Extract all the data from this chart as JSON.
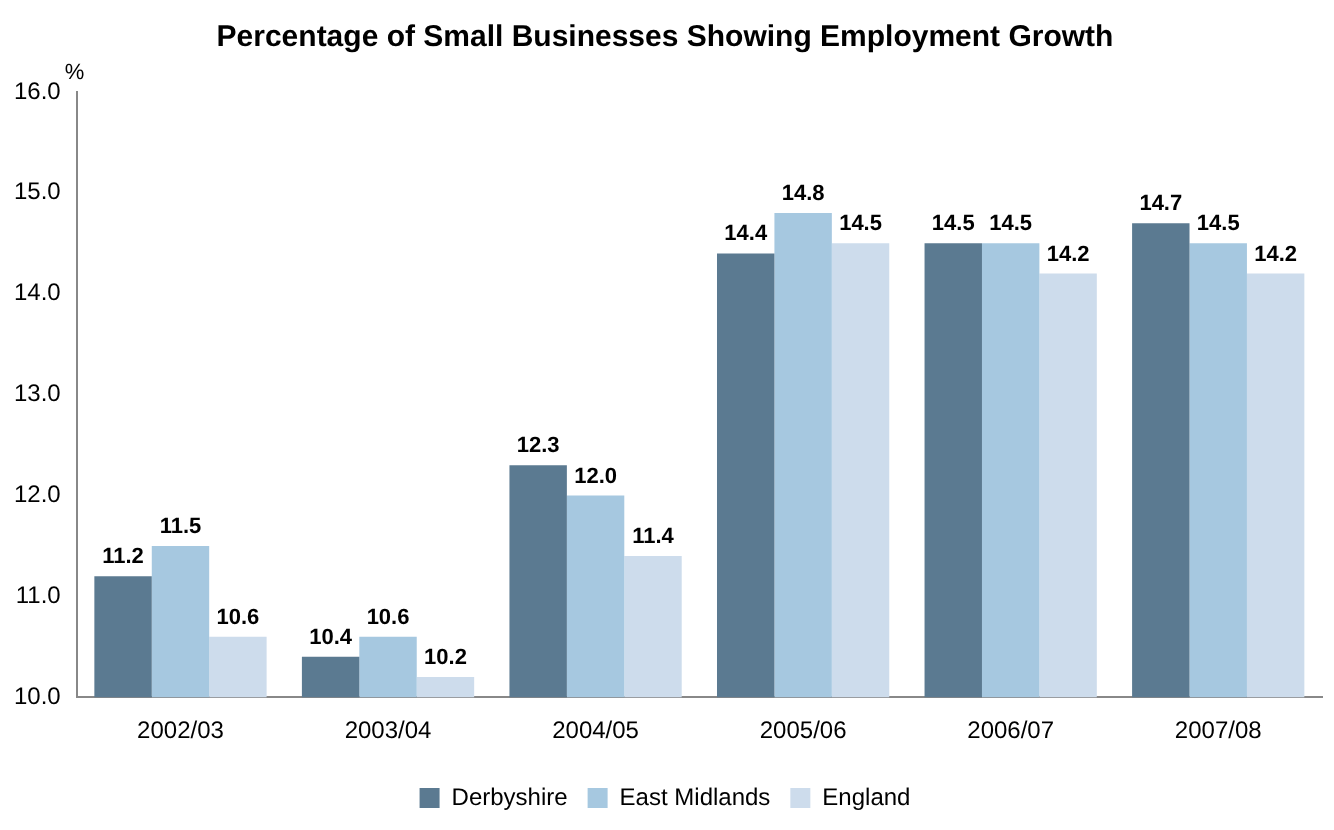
{
  "chart_data": {
    "type": "bar",
    "title": "Percentage of Small Businesses Showing Employment Growth",
    "ylabel": "%",
    "categories": [
      "2002/03",
      "2003/04",
      "2004/05",
      "2005/06",
      "2006/07",
      "2007/08"
    ],
    "series": [
      {
        "name": "Derbyshire",
        "color": "#5b7a91",
        "values": [
          11.2,
          10.4,
          12.3,
          14.4,
          14.5,
          14.7
        ],
        "value_labels": [
          "11.2",
          "10.4",
          "12.3",
          "14.4",
          "14.5",
          "14.7"
        ]
      },
      {
        "name": "East Midlands",
        "color": "#a6c8e0",
        "values": [
          11.5,
          10.6,
          12.0,
          14.8,
          14.5,
          14.5
        ],
        "value_labels": [
          "11.5",
          "10.6",
          "12.0",
          "14.8",
          "14.5",
          "14.5"
        ]
      },
      {
        "name": "England",
        "color": "#cddcec",
        "values": [
          10.6,
          10.2,
          11.4,
          14.5,
          14.2,
          14.2
        ],
        "value_labels": [
          "10.6",
          "10.2",
          "11.4",
          "14.5",
          "14.2",
          "14.2"
        ]
      }
    ],
    "ylim": [
      10,
      16
    ],
    "yticks": [
      {
        "value": 10,
        "label": "10.0"
      },
      {
        "value": 11,
        "label": "11.0"
      },
      {
        "value": 12,
        "label": "12.0"
      },
      {
        "value": 13,
        "label": "13.0"
      },
      {
        "value": 14,
        "label": "14.0"
      },
      {
        "value": 15,
        "label": "15.0"
      },
      {
        "value": 16,
        "label": "16.0"
      }
    ],
    "grid": false,
    "legend": "bottom"
  }
}
